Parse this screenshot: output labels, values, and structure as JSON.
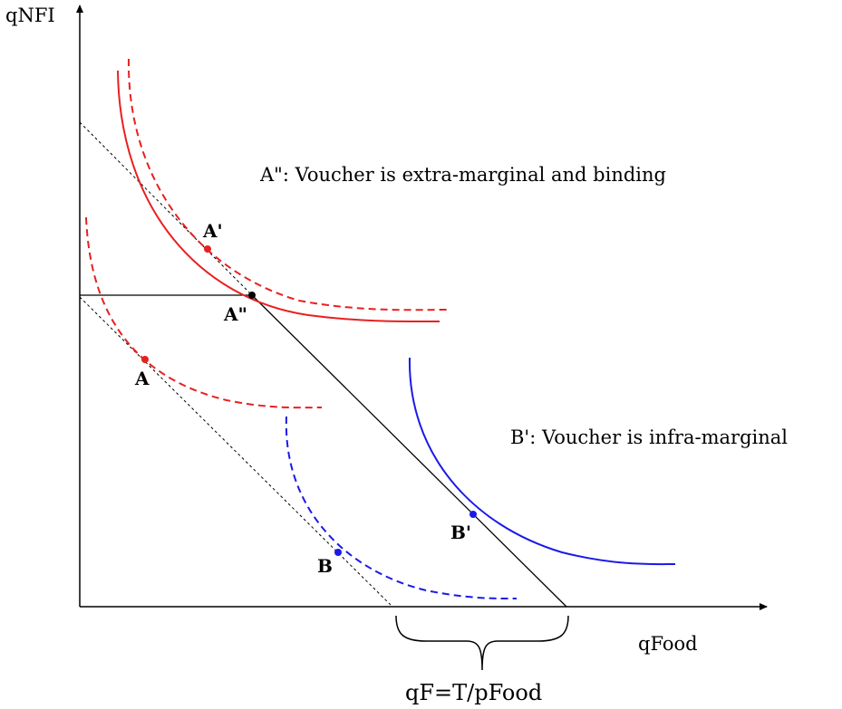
{
  "axes": {
    "y_label": "qNFI",
    "x_label": "qFood"
  },
  "points": [
    {
      "label": "A'"
    },
    {
      "label": "A\""
    },
    {
      "label": "A"
    },
    {
      "label": "B'"
    },
    {
      "label": "B"
    }
  ],
  "annotations": [
    "A\": Voucher is extra-marginal and binding",
    "B': Voucher is infra-marginal"
  ],
  "brace_label": "qF=T/pFood"
}
